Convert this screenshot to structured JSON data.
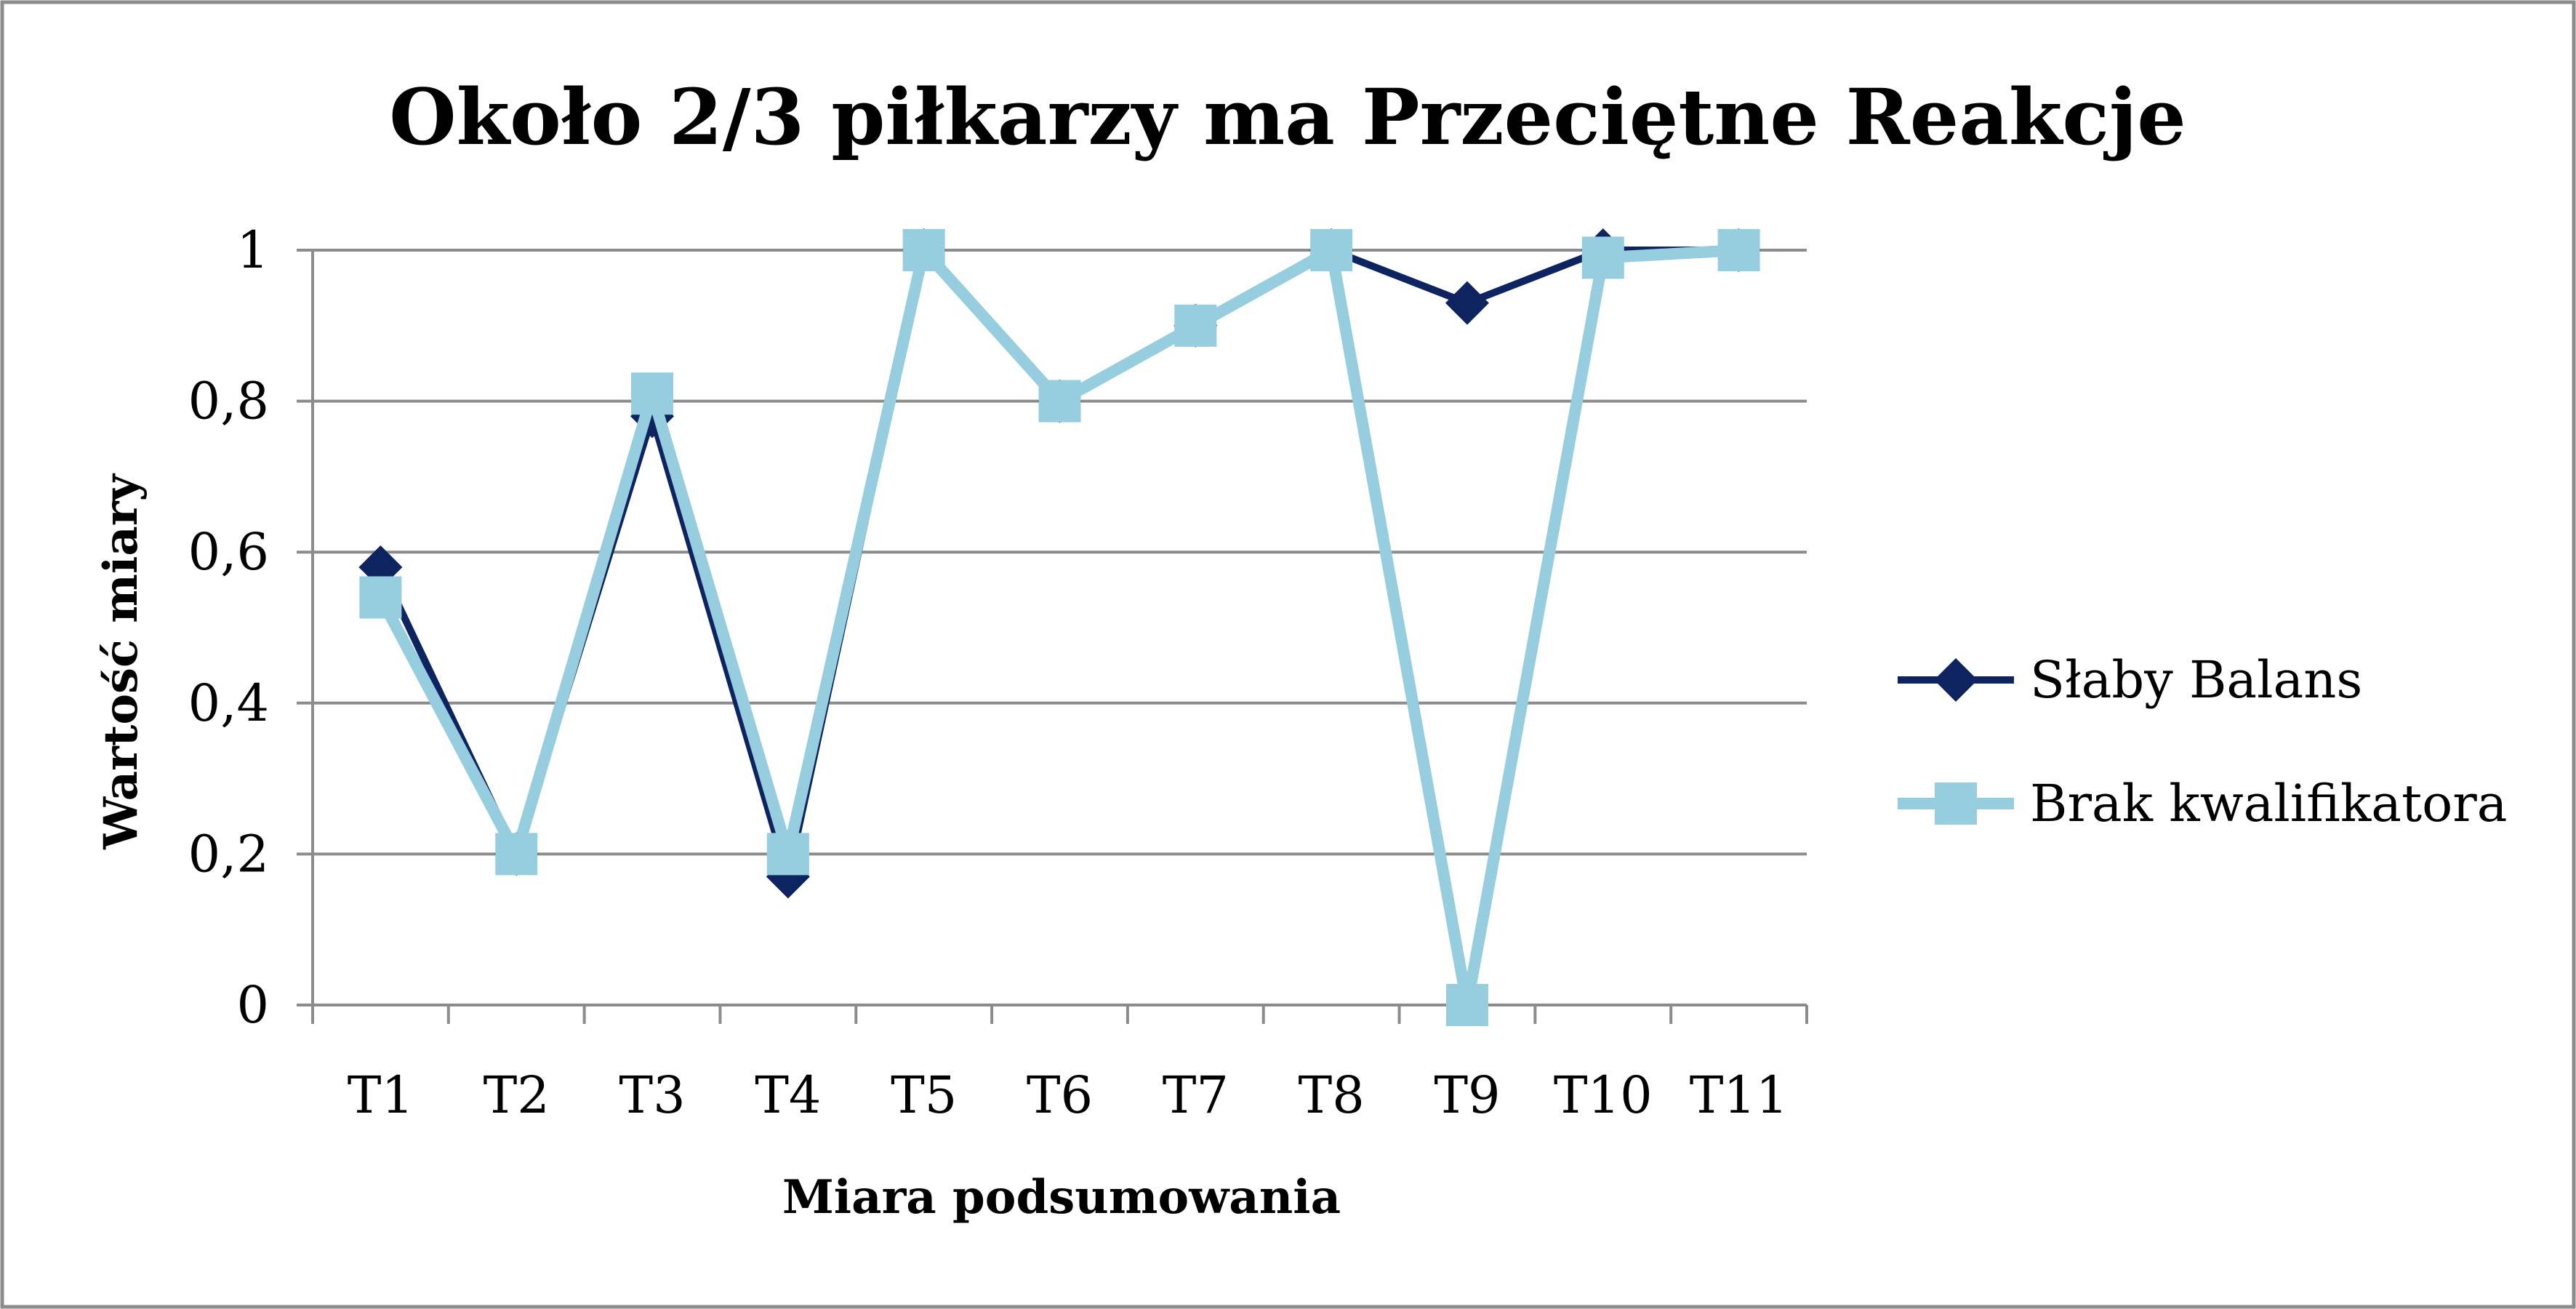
{
  "chart_data": {
    "type": "line",
    "title": "Około 2/3 piłkarzy ma Przeciętne Reakcje",
    "xlabel": "Miara podsumowania",
    "ylabel": "Wartość miary",
    "categories": [
      "T1",
      "T2",
      "T3",
      "T4",
      "T5",
      "T6",
      "T7",
      "T8",
      "T9",
      "T10",
      "T11"
    ],
    "y_ticks": [
      "0",
      "0,2",
      "0,4",
      "0,6",
      "0,8",
      "1"
    ],
    "ylim": [
      0,
      1
    ],
    "grid": true,
    "legend_position": "right",
    "series": [
      {
        "name": "Słaby Balans",
        "color": "#0d2461",
        "marker": "diamond",
        "values": [
          0.58,
          0.2,
          0.78,
          0.17,
          1.0,
          0.8,
          0.9,
          1.0,
          0.93,
          1.0,
          1.0
        ]
      },
      {
        "name": "Brak kwalifikatora",
        "color": "#96cddf",
        "marker": "square",
        "values": [
          0.54,
          0.2,
          0.81,
          0.2,
          1.0,
          0.8,
          0.9,
          1.0,
          0.0,
          0.99,
          1.0
        ]
      }
    ]
  }
}
